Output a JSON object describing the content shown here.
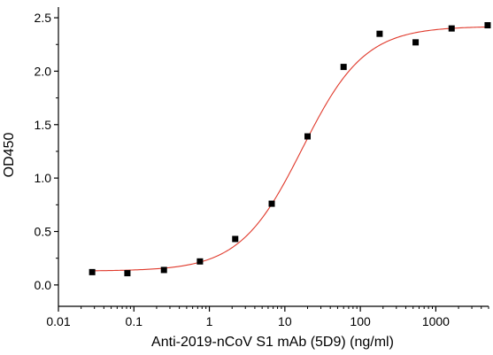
{
  "chart_data": {
    "type": "scatter",
    "title": "",
    "xlabel": "Anti-2019-nCoV S1 mAb (5D9) (ng/ml)",
    "ylabel": "OD450",
    "x_scale": "log",
    "xlim": [
      0.01,
      5000
    ],
    "ylim": [
      -0.2,
      2.6
    ],
    "grid": false,
    "legend": "none",
    "x_ticks": [
      0.01,
      0.1,
      1,
      10,
      100,
      1000
    ],
    "x_tick_labels": [
      "0.01",
      "0.1",
      "1",
      "10",
      "100",
      "1000"
    ],
    "y_ticks": [
      0.0,
      0.5,
      1.0,
      1.5,
      2.0,
      2.5
    ],
    "y_tick_labels": [
      "0.0",
      "0.5",
      "1.0",
      "1.5",
      "2.0",
      "2.5"
    ],
    "series": [
      {
        "kind": "points",
        "color": "#000000",
        "x": [
          0.028,
          0.082,
          0.25,
          0.75,
          2.2,
          6.7,
          20,
          60,
          180,
          540,
          1620,
          4860
        ],
        "y": [
          0.12,
          0.11,
          0.14,
          0.22,
          0.43,
          0.76,
          1.39,
          2.04,
          2.35,
          2.27,
          2.4,
          2.43
        ]
      },
      {
        "kind": "fit",
        "color": "#e0392b",
        "model": "4PL",
        "bottom": 0.13,
        "top": 2.42,
        "ec50": 17,
        "hill": 1.05,
        "x_range": [
          0.028,
          4860
        ]
      }
    ]
  }
}
